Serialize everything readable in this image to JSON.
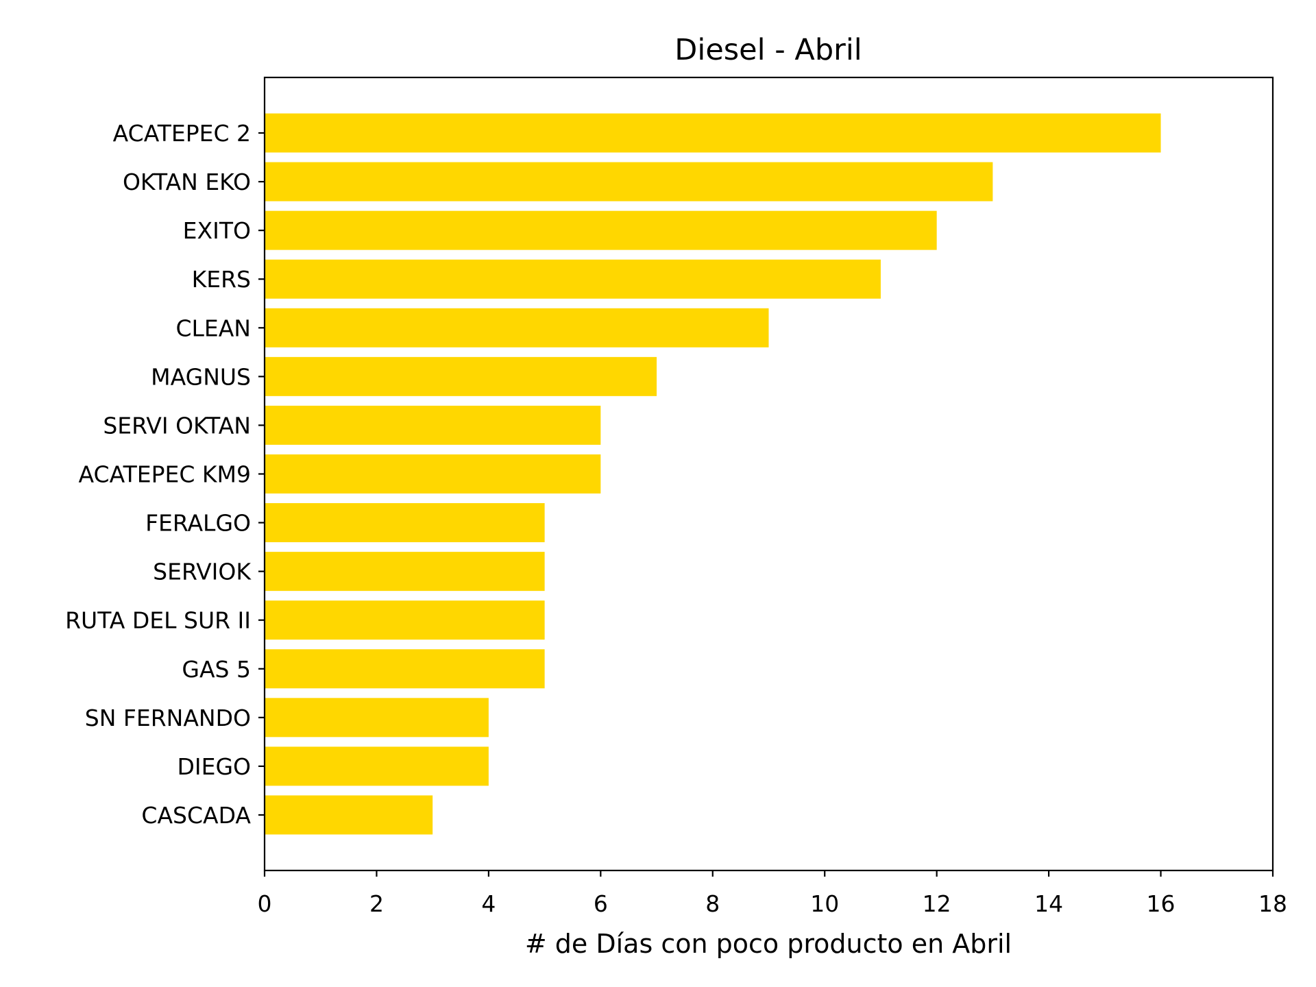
{
  "chart_data": {
    "type": "bar",
    "orientation": "horizontal",
    "title": "Diesel - Abril",
    "xlabel": "# de Días con poco producto en Abril",
    "ylabel": "",
    "xlim": [
      0,
      18
    ],
    "xticks": [
      0,
      2,
      4,
      6,
      8,
      10,
      12,
      14,
      16,
      18
    ],
    "grid": false,
    "bar_color": "#FFD700",
    "categories": [
      "ACATEPEC 2",
      "OKTAN EKO",
      "EXITO",
      "KERS",
      "CLEAN",
      "MAGNUS",
      "SERVI OKTAN",
      "ACATEPEC KM9",
      "FERALGO",
      "SERVIOK",
      "RUTA DEL SUR II",
      "GAS 5",
      "SN FERNANDO",
      "DIEGO",
      "CASCADA"
    ],
    "values": [
      16,
      13,
      12,
      11,
      9,
      7,
      6,
      6,
      5,
      5,
      5,
      5,
      4,
      4,
      3
    ]
  }
}
